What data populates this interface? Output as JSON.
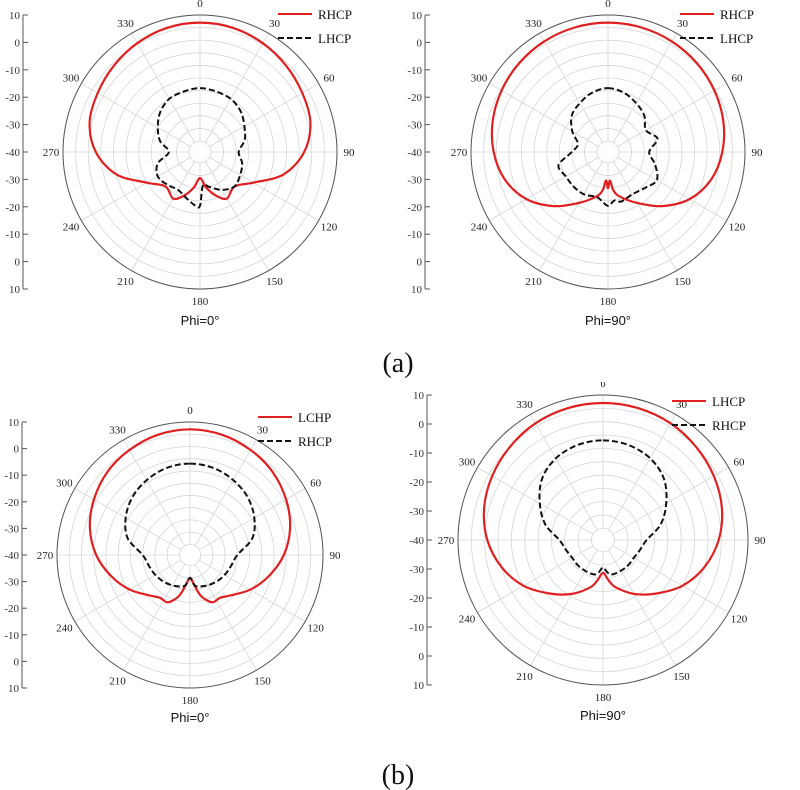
{
  "chart_data": [
    {
      "type": "polar",
      "caption": "Phi=0°",
      "angle_labels": [
        "0",
        "30",
        "60",
        "90",
        "120",
        "150",
        "180",
        "210",
        "240",
        "270",
        "300",
        "330"
      ],
      "radial_tick_labels": [
        "10",
        "0",
        "-10",
        "-20",
        "-30",
        "-40",
        "-30",
        "-20",
        "-10",
        "0",
        "10"
      ],
      "rlim": [
        -40,
        10
      ],
      "grid": true,
      "legend_position": "top-right",
      "series": [
        {
          "name": "RHCP",
          "color": "#e02020",
          "dash": "solid",
          "theta": [
            0,
            15,
            30,
            45,
            60,
            75,
            90,
            105,
            120,
            135,
            150,
            160,
            170,
            180,
            190,
            200,
            210,
            225,
            240,
            255,
            270,
            285,
            300,
            315,
            330,
            345,
            360
          ],
          "r": [
            7,
            6.6,
            5.5,
            4,
            2.5,
            1,
            -3,
            -10,
            -20,
            -25,
            -23,
            -26,
            -30,
            -34,
            -30,
            -26,
            -23,
            -25,
            -20,
            -10,
            -3,
            1,
            2.5,
            4,
            5.5,
            6.6,
            7
          ]
        },
        {
          "name": "LHCP",
          "color": "#111111",
          "dash": "dashed",
          "theta": [
            0,
            15,
            30,
            45,
            60,
            75,
            90,
            105,
            120,
            135,
            150,
            165,
            175,
            180,
            185,
            195,
            210,
            225,
            240,
            255,
            270,
            285,
            300,
            315,
            330,
            345,
            360
          ],
          "r": [
            -19,
            -19.5,
            -20,
            -21.5,
            -24,
            -26,
            -29,
            -27,
            -26,
            -25,
            -27,
            -30,
            -31,
            -23,
            -23,
            -25,
            -27,
            -26,
            -25,
            -27,
            -32,
            -28,
            -25,
            -22,
            -20,
            -19.5,
            -19
          ]
        }
      ]
    },
    {
      "type": "polar",
      "caption": "Phi=90°",
      "angle_labels": [
        "0",
        "30",
        "60",
        "90",
        "120",
        "150",
        "180",
        "210",
        "240",
        "270",
        "300",
        "330"
      ],
      "radial_tick_labels": [
        "10",
        "0",
        "-10",
        "-20",
        "-30",
        "-40",
        "-30",
        "-20",
        "-10",
        "0",
        "10"
      ],
      "rlim": [
        -40,
        10
      ],
      "grid": true,
      "legend_position": "top-right",
      "series": [
        {
          "name": "RHCP",
          "color": "#e02020",
          "dash": "solid",
          "theta": [
            0,
            15,
            30,
            45,
            60,
            75,
            90,
            105,
            120,
            135,
            150,
            165,
            172,
            176,
            180,
            184,
            188,
            195,
            210,
            225,
            240,
            255,
            270,
            285,
            300,
            315,
            330,
            345,
            360
          ],
          "r": [
            7,
            6.8,
            6.3,
            5.5,
            4.4,
            3,
            1,
            -2,
            -7,
            -14,
            -21,
            -26,
            -29,
            -33,
            -30,
            -33,
            -29,
            -26,
            -21,
            -14,
            -7,
            -2,
            1,
            3,
            4.4,
            5.5,
            6.3,
            6.8,
            7
          ]
        },
        {
          "name": "LHCP",
          "color": "#111111",
          "dash": "dashed",
          "theta": [
            0,
            15,
            30,
            45,
            60,
            75,
            90,
            105,
            120,
            135,
            150,
            165,
            172,
            180,
            188,
            195,
            210,
            225,
            240,
            255,
            270,
            285,
            300,
            315,
            330,
            345,
            360
          ],
          "r": [
            -19,
            -20,
            -22,
            -24,
            -27,
            -24,
            -28,
            -25,
            -22,
            -24,
            -25,
            -24,
            -25,
            -23,
            -25,
            -26,
            -25,
            -25,
            -25,
            -24,
            -30,
            -32,
            -28,
            -24,
            -22,
            -20,
            -19
          ]
        }
      ]
    },
    {
      "type": "polar",
      "caption": "Phi=0°",
      "angle_labels": [
        "0",
        "30",
        "60",
        "90",
        "120",
        "150",
        "180",
        "210",
        "240",
        "270",
        "300",
        "330"
      ],
      "radial_tick_labels": [
        "10",
        "0",
        "-10",
        "-20",
        "-30",
        "-40",
        "-30",
        "-20",
        "-10",
        "0",
        "10"
      ],
      "rlim": [
        -40,
        10
      ],
      "grid": true,
      "legend_position": "top-right",
      "series": [
        {
          "name": "LCHP",
          "color": "#e02020",
          "dash": "solid",
          "theta": [
            0,
            15,
            30,
            45,
            60,
            75,
            90,
            105,
            120,
            135,
            145,
            155,
            165,
            172,
            180,
            188,
            195,
            205,
            215,
            225,
            240,
            255,
            270,
            285,
            300,
            315,
            330,
            345,
            360
          ],
          "r": [
            7,
            6.5,
            5.2,
            3.5,
            1,
            -2,
            -6,
            -11,
            -16,
            -21,
            -23,
            -23,
            -27,
            -32,
            -35,
            -32,
            -27,
            -23,
            -23,
            -21,
            -16,
            -11,
            -6,
            -2,
            1,
            3.5,
            5.2,
            6.5,
            7
          ]
        },
        {
          "name": "RHCP",
          "color": "#111111",
          "dash": "dashed",
          "theta": [
            0,
            15,
            30,
            45,
            60,
            75,
            90,
            105,
            120,
            135,
            150,
            165,
            172,
            180,
            188,
            195,
            210,
            225,
            240,
            255,
            270,
            285,
            300,
            315,
            330,
            345,
            360
          ],
          "r": [
            -7,
            -7.5,
            -9,
            -11,
            -14,
            -18,
            -25,
            -27,
            -28,
            -29,
            -30,
            -31,
            -32,
            -35,
            -32,
            -31,
            -30,
            -29,
            -28,
            -27,
            -25,
            -18,
            -14,
            -11,
            -9,
            -7.5,
            -7
          ]
        }
      ]
    },
    {
      "type": "polar",
      "caption": "Phi=90°",
      "angle_labels": [
        "υ",
        "30",
        "60",
        "90",
        "120",
        "150",
        "180",
        "210",
        "240",
        "270",
        "300",
        "330"
      ],
      "radial_tick_labels": [
        "10",
        "0",
        "-10",
        "-20",
        "-30",
        "-40",
        "-30",
        "-20",
        "-10",
        "0",
        "10"
      ],
      "rlim": [
        -40,
        10
      ],
      "grid": true,
      "legend_position": "top-right",
      "series": [
        {
          "name": "LHCP",
          "color": "#e02020",
          "dash": "solid",
          "theta": [
            0,
            15,
            30,
            45,
            60,
            75,
            90,
            105,
            120,
            135,
            150,
            165,
            172,
            180,
            188,
            195,
            210,
            225,
            240,
            255,
            270,
            285,
            300,
            315,
            330,
            345,
            360
          ],
          "r": [
            7,
            6.8,
            6.2,
            5,
            3.6,
            1.8,
            -1,
            -5,
            -10,
            -16,
            -21,
            -26,
            -29,
            -32,
            -29,
            -26,
            -21,
            -16,
            -10,
            -5,
            -1,
            1.8,
            3.6,
            5,
            6.2,
            6.8,
            7
          ]
        },
        {
          "name": "RHCP",
          "color": "#111111",
          "dash": "dashed",
          "theta": [
            0,
            15,
            30,
            45,
            60,
            75,
            90,
            105,
            120,
            135,
            150,
            165,
            172,
            180,
            188,
            195,
            210,
            225,
            240,
            255,
            270,
            285,
            300,
            315,
            330,
            345,
            360
          ],
          "r": [
            -7,
            -7.5,
            -9,
            -12,
            -17,
            -22,
            -28,
            -30,
            -31,
            -31,
            -31,
            -31,
            -32,
            -34,
            -32,
            -31,
            -31,
            -31,
            -31,
            -30,
            -28,
            -22,
            -17,
            -12,
            -9,
            -7.5,
            -7
          ]
        }
      ]
    }
  ],
  "subfigure_labels": [
    "(a)",
    "(b)"
  ]
}
